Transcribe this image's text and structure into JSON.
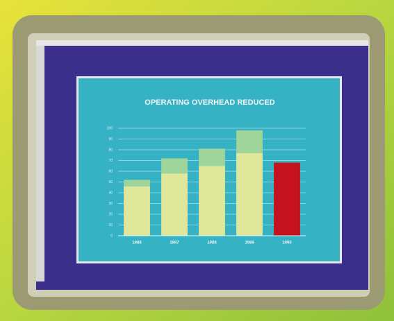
{
  "chart_data": {
    "type": "bar",
    "stacked": true,
    "title": "OPERATING OVERHEAD REDUCED",
    "categories": [
      "1986",
      "1987",
      "1988",
      "1989",
      "1990"
    ],
    "series": [
      {
        "color": "#dfe89a",
        "values": [
          46,
          58,
          65,
          77,
          null
        ]
      },
      {
        "color": "#9fd49a",
        "values": [
          6,
          14,
          16,
          21,
          null
        ]
      },
      {
        "color": "#c4121e",
        "values": [
          null,
          null,
          null,
          null,
          68
        ]
      }
    ],
    "ylim": [
      0,
      100
    ],
    "yticks": [
      0,
      10,
      20,
      30,
      40,
      50,
      60,
      70,
      80,
      90,
      100
    ],
    "grid": true
  }
}
